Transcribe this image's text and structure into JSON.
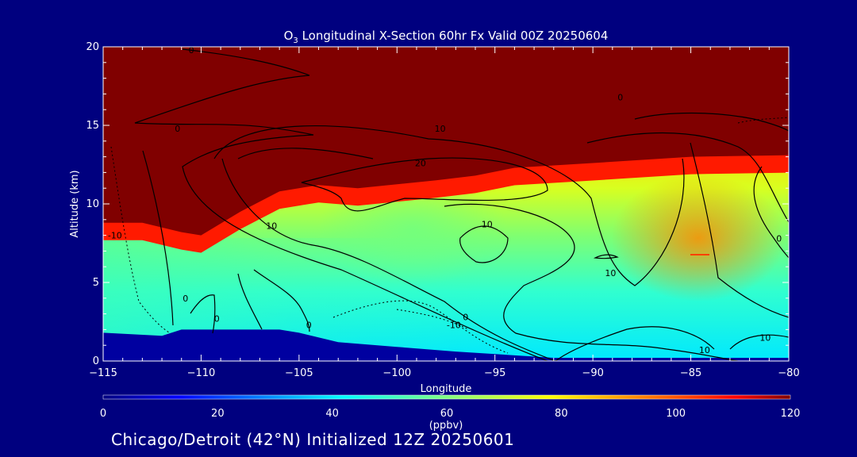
{
  "footer_text": "Chicago/Detroit (42°N) Initialized 12Z 20250601",
  "chart_data": {
    "type": "heatmap",
    "title_prefix": "O",
    "title_subscript": "3",
    "title_suffix": " Longitudinal X-Section 60hr  Fx Valid 00Z 20250604",
    "xlabel": "Longitude",
    "ylabel": "Altitude (km)",
    "xlim": [
      -115,
      -80
    ],
    "ylim": [
      0,
      20
    ],
    "x_ticks": [
      -115,
      -110,
      -105,
      -100,
      -95,
      -90,
      -85,
      -80
    ],
    "x_tick_labels": [
      "−115",
      "−110",
      "−105",
      "−100",
      "−95",
      "−90",
      "−85",
      "−80"
    ],
    "y_ticks": [
      0,
      5,
      10,
      15,
      20
    ],
    "y_tick_labels": [
      "0",
      "5",
      "10",
      "15",
      "20"
    ],
    "colorbar": {
      "label": "(ppbv)",
      "min": 0,
      "max": 120,
      "ticks": [
        0,
        20,
        40,
        60,
        80,
        100,
        120
      ],
      "tick_labels": [
        "0",
        "20",
        "40",
        "60",
        "80",
        "100",
        "120"
      ]
    },
    "terrain_km": [
      [
        -115,
        1.8
      ],
      [
        -112,
        1.6
      ],
      [
        -111,
        2.0
      ],
      [
        -106,
        2.0
      ],
      [
        -105,
        1.8
      ],
      [
        -103,
        1.2
      ],
      [
        -100,
        0.9
      ],
      [
        -97,
        0.6
      ],
      [
        -92,
        0.2
      ],
      [
        -80,
        0.2
      ]
    ],
    "tropopause_km": [
      [
        -115,
        8.8
      ],
      [
        -113,
        8.8
      ],
      [
        -111,
        8.2
      ],
      [
        -110,
        8.0
      ],
      [
        -108,
        9.5
      ],
      [
        -106,
        10.8
      ],
      [
        -104,
        11.2
      ],
      [
        -102,
        11.0
      ],
      [
        -98,
        11.5
      ],
      [
        -96,
        11.8
      ],
      [
        -94,
        12.3
      ],
      [
        -90,
        12.6
      ],
      [
        -85,
        13.0
      ],
      [
        -80,
        13.1
      ]
    ],
    "contour_labels": [
      {
        "text": "0",
        "x": -110.5,
        "y": 19.6
      },
      {
        "text": "0",
        "x": -111.2,
        "y": 14.6
      },
      {
        "text": "10",
        "x": -97.8,
        "y": 14.6
      },
      {
        "text": "20",
        "x": -98.8,
        "y": 12.4
      },
      {
        "text": "10",
        "x": -106.4,
        "y": 8.4
      },
      {
        "text": "10",
        "x": -95.4,
        "y": 8.5
      },
      {
        "text": "10",
        "x": -89.1,
        "y": 5.4
      },
      {
        "text": "-10",
        "x": -114.4,
        "y": 7.8
      },
      {
        "text": "0",
        "x": -110.8,
        "y": 3.8
      },
      {
        "text": "0",
        "x": -109.2,
        "y": 2.5
      },
      {
        "text": "0",
        "x": -104.5,
        "y": 2.1
      },
      {
        "text": "0",
        "x": -96.5,
        "y": 2.6
      },
      {
        "text": "-10",
        "x": -97.1,
        "y": 2.1
      },
      {
        "text": "10",
        "x": -81.2,
        "y": 1.3
      },
      {
        "text": "10",
        "x": -84.3,
        "y": 0.5
      },
      {
        "text": "0",
        "x": -80.5,
        "y": 7.6
      },
      {
        "text": "0",
        "x": -88.6,
        "y": 16.6
      }
    ]
  }
}
